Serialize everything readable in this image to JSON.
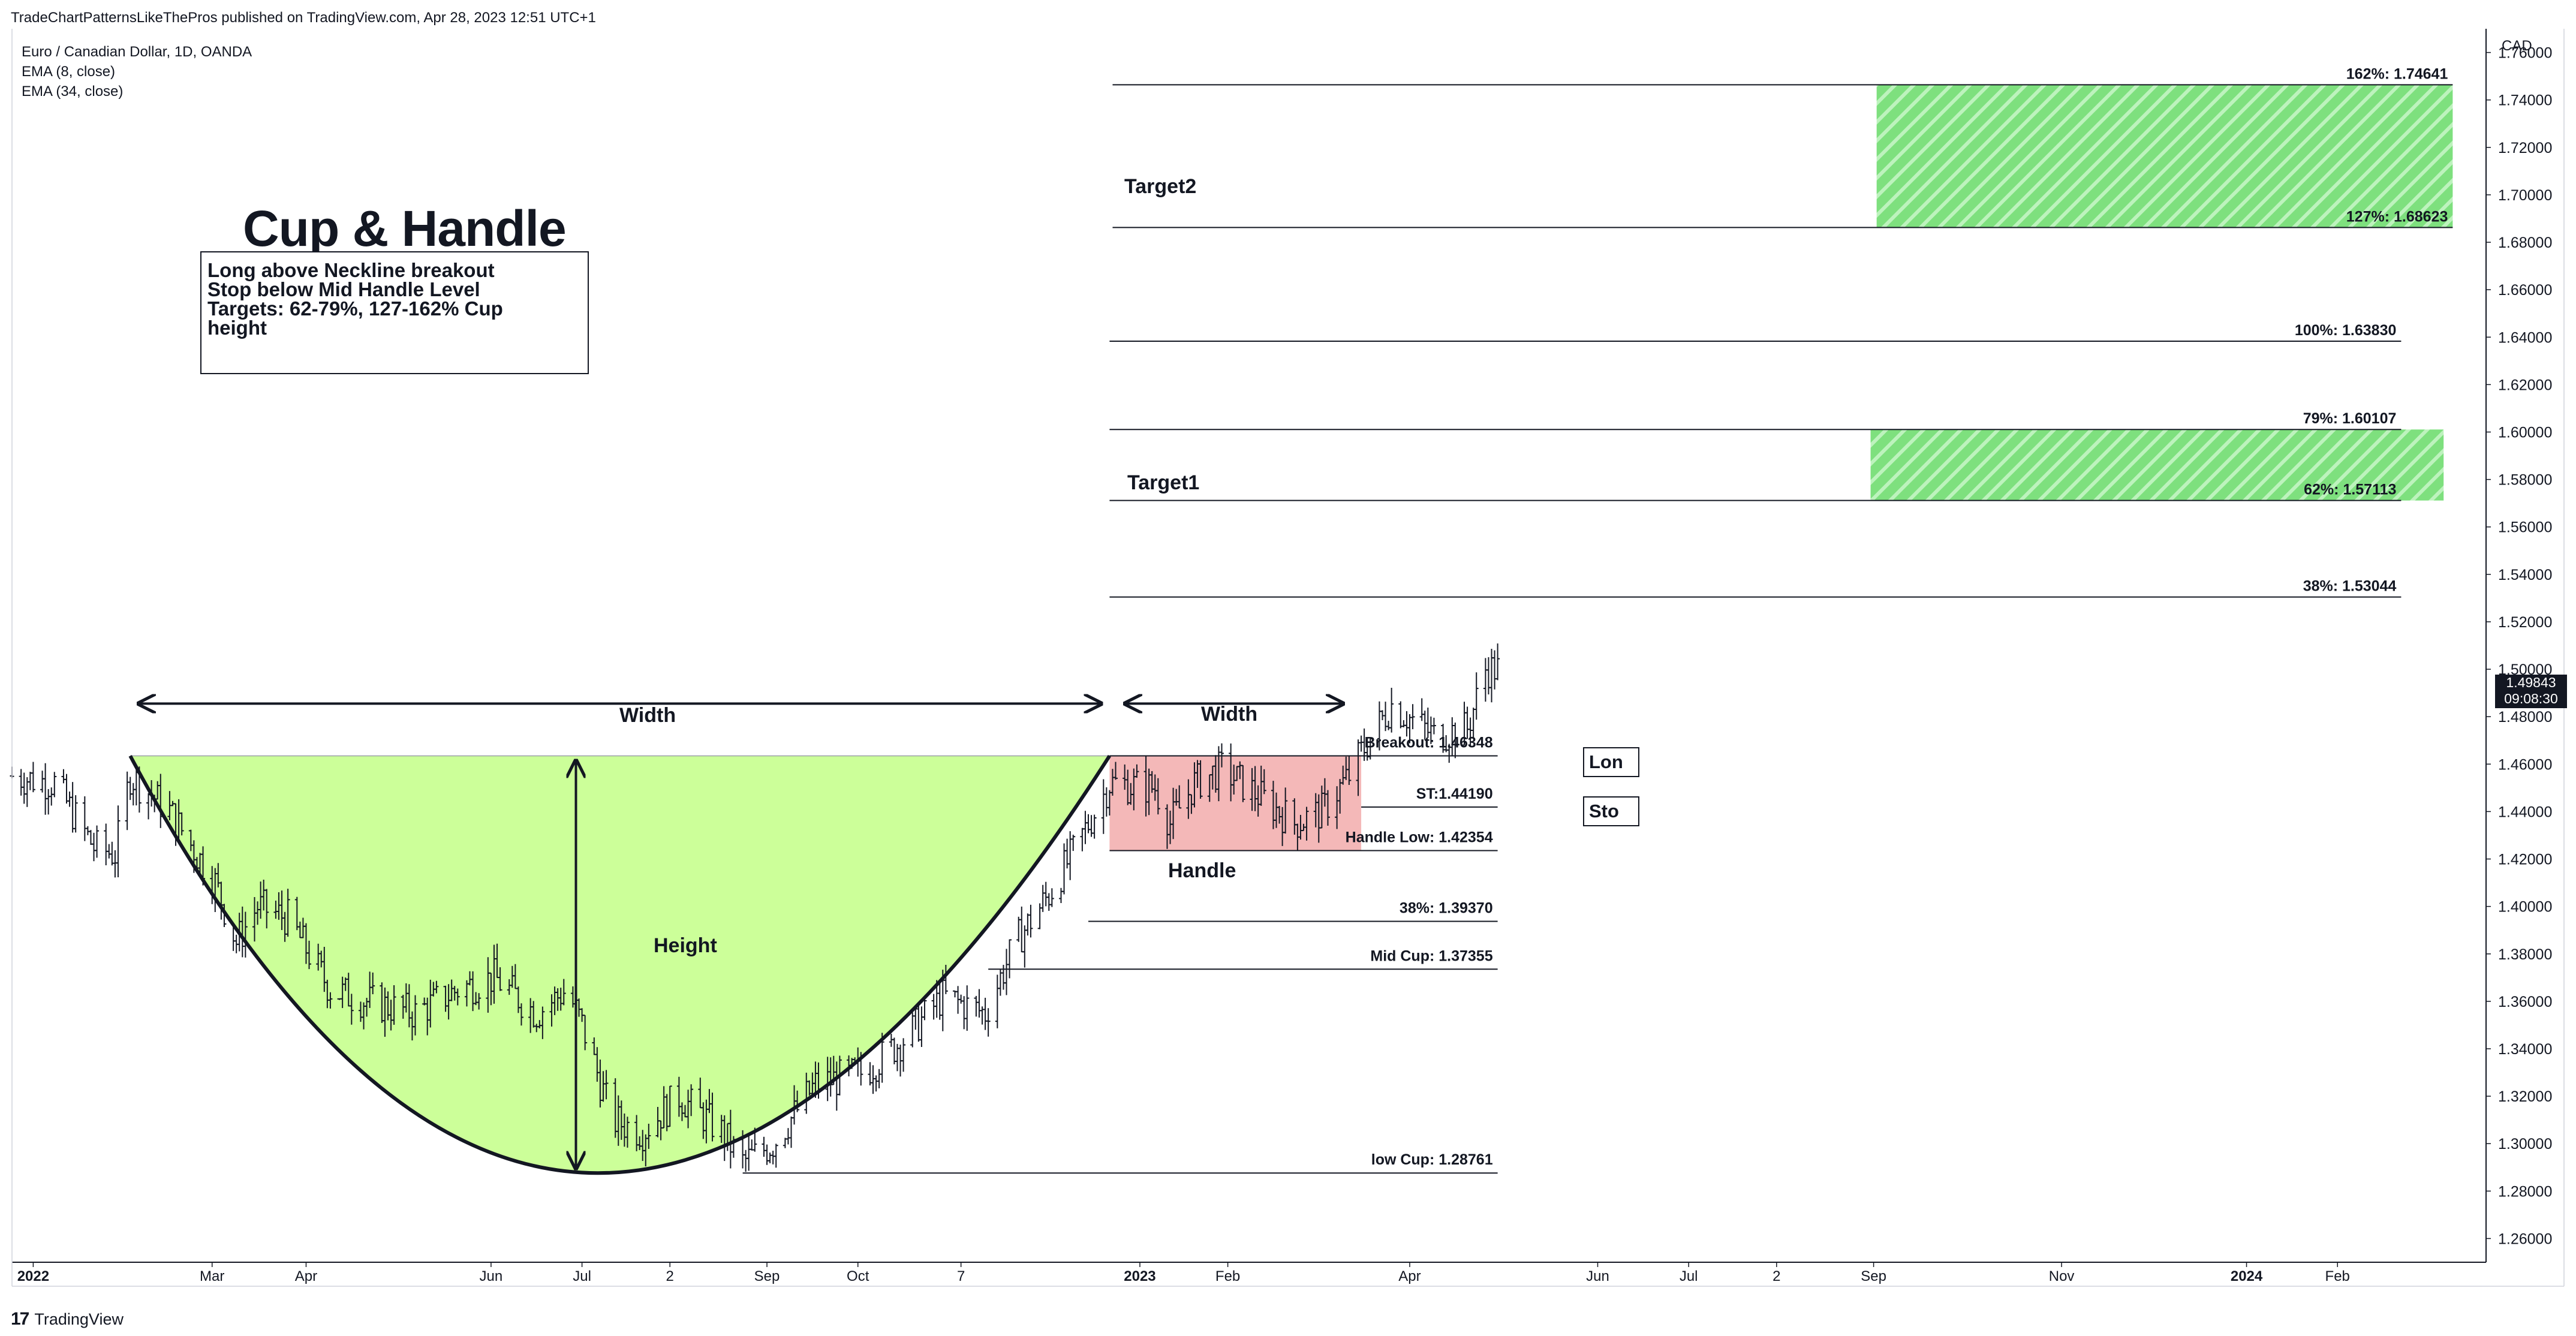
{
  "header": {
    "published": "TradeChartPatternsLikeThePros published on TradingView.com, Apr 28, 2023 12:51 UTC+1",
    "instrument": "Euro / Canadian Dollar, 1D, OANDA",
    "indicator_1": "EMA (8, close)",
    "indicator_2": "EMA (34, close)"
  },
  "footer": {
    "brand_mark": "17",
    "brand": "TradingView"
  },
  "annotations": {
    "title": "Cup & Handle",
    "note_lines": [
      "Long above Neckline breakout",
      "Stop below Mid Handle Level",
      "Targets: 62-79%, 127-162% Cup",
      "height"
    ],
    "width_label_1": "Width",
    "width_label_2": "Width",
    "height_label": "Height",
    "handle_label": "Handle",
    "target1_label": "Target1",
    "target2_label": "Target2",
    "long_box": "Lon",
    "stop_box": "Sto"
  },
  "price_box": {
    "value": "1.49843",
    "countdown": "09:08:30"
  },
  "colors": {
    "cup_fill": "#ccff99",
    "handle_fill": "#f4b8b8",
    "target_hatch": "#7ee07e",
    "candles": "#131722"
  },
  "chart_data": {
    "type": "bar",
    "currency": "CAD",
    "ylim": [
      1.25,
      1.77
    ],
    "y_ticks": [
      "1.76000",
      "1.74000",
      "1.72000",
      "1.70000",
      "1.68000",
      "1.66000",
      "1.64000",
      "1.62000",
      "1.60000",
      "1.58000",
      "1.56000",
      "1.54000",
      "1.52000",
      "1.50000",
      "1.48000",
      "1.46000",
      "1.44000",
      "1.42000",
      "1.40000",
      "1.38000",
      "1.36000",
      "1.34000",
      "1.32000",
      "1.30000",
      "1.28000",
      "1.26000"
    ],
    "x_ticks": [
      "2022",
      "Mar",
      "Apr",
      "Jun",
      "Jul",
      "2",
      "Sep",
      "Oct",
      "7",
      "2023",
      "Feb",
      "Apr",
      "Jun",
      "Jul",
      "2",
      "Sep",
      "Nov",
      "2024",
      "Feb"
    ],
    "x_ticks_bold": [
      "2022",
      "2023",
      "2024"
    ],
    "x_range": [
      "2021-12-24",
      "2024-03-19"
    ],
    "x_tick_dates": [
      "2021-12-31",
      "2022-02-28",
      "2022-03-31",
      "2022-05-31",
      "2022-06-30",
      "2022-07-29",
      "2022-08-30",
      "2022-09-29",
      "2022-11-02",
      "2022-12-31",
      "2023-01-29",
      "2023-03-30",
      "2023-05-31",
      "2023-06-30",
      "2023-07-29",
      "2023-08-30",
      "2023-10-31",
      "2023-12-31",
      "2024-01-30"
    ],
    "last_price": "1.49843",
    "cup": {
      "rim_price": 1.46348,
      "low_price": 1.28761,
      "left_rim_date": "2022-02-01",
      "low_date": "2022-06-28",
      "right_rim_date": "2022-12-21"
    },
    "handle_zone": {
      "from": "2022-12-21",
      "to": "2023-03-14",
      "top": 1.46348,
      "bottom": 1.42354
    },
    "target_zones": [
      {
        "name": "Target1",
        "from": "2023-08-29",
        "to": "2024-03-05",
        "top": 1.60107,
        "bottom": 1.57113
      },
      {
        "name": "Target2",
        "from": "2023-08-31",
        "to": "2024-03-08",
        "top": 1.74641,
        "bottom": 1.68623
      }
    ],
    "levels": [
      {
        "label": "162%: 1.74641",
        "price": 1.74641,
        "from": "2022-12-22",
        "to": "2024-03-08"
      },
      {
        "label": "127%: 1.68623",
        "price": 1.68623,
        "from": "2022-12-22",
        "to": "2024-03-08"
      },
      {
        "label": "100%: 1.63830",
        "price": 1.6383,
        "from": "2022-12-21",
        "to": "2024-02-20"
      },
      {
        "label": "79%: 1.60107",
        "price": 1.60107,
        "from": "2022-12-21",
        "to": "2024-02-20"
      },
      {
        "label": "62%: 1.57113",
        "price": 1.57113,
        "from": "2022-12-21",
        "to": "2024-02-20"
      },
      {
        "label": "38%: 1.53044",
        "price": 1.53044,
        "from": "2022-12-21",
        "to": "2024-02-20"
      },
      {
        "label": "Breakout: 1.46348",
        "price": 1.46348,
        "from": "2022-12-21",
        "to": "2023-04-28"
      },
      {
        "label": "ST:1.44190",
        "price": 1.4419,
        "from": "2023-03-14",
        "to": "2023-04-28"
      },
      {
        "label": "Handle Low: 1.42354",
        "price": 1.42354,
        "from": "2022-12-21",
        "to": "2023-04-28"
      },
      {
        "label": "38%: 1.39370",
        "price": 1.3937,
        "from": "2022-12-14",
        "to": "2023-04-28"
      },
      {
        "label": "Mid Cup: 1.37355",
        "price": 1.37355,
        "from": "2022-11-11",
        "to": "2023-04-28"
      },
      {
        "label": "low Cup: 1.28761",
        "price": 1.28761,
        "from": "2022-08-22",
        "to": "2023-04-28"
      }
    ],
    "price_path": [
      [
        "2021-12-24",
        1.455
      ],
      [
        "2022-01-07",
        1.452
      ],
      [
        "2022-01-20",
        1.425
      ],
      [
        "2022-01-27",
        1.422
      ],
      [
        "2022-02-01",
        1.455
      ],
      [
        "2022-02-14",
        1.44
      ],
      [
        "2022-03-01",
        1.41
      ],
      [
        "2022-03-08",
        1.385
      ],
      [
        "2022-03-15",
        1.4
      ],
      [
        "2022-03-25",
        1.395
      ],
      [
        "2022-04-08",
        1.365
      ],
      [
        "2022-04-20",
        1.36
      ],
      [
        "2022-05-06",
        1.355
      ],
      [
        "2022-05-20",
        1.365
      ],
      [
        "2022-06-01",
        1.37
      ],
      [
        "2022-06-15",
        1.355
      ],
      [
        "2022-06-25",
        1.365
      ],
      [
        "2022-06-30",
        1.35
      ],
      [
        "2022-07-10",
        1.31
      ],
      [
        "2022-07-20",
        1.305
      ],
      [
        "2022-08-01",
        1.32
      ],
      [
        "2022-08-15",
        1.305
      ],
      [
        "2022-08-22",
        1.292
      ],
      [
        "2022-09-01",
        1.3
      ],
      [
        "2022-09-15",
        1.325
      ],
      [
        "2022-10-01",
        1.33
      ],
      [
        "2022-10-15",
        1.345
      ],
      [
        "2022-10-27",
        1.362
      ],
      [
        "2022-11-10",
        1.355
      ],
      [
        "2022-11-20",
        1.385
      ],
      [
        "2022-12-01",
        1.405
      ],
      [
        "2022-12-10",
        1.425
      ],
      [
        "2022-12-21",
        1.452
      ],
      [
        "2023-01-05",
        1.45
      ],
      [
        "2023-01-10",
        1.435
      ],
      [
        "2023-01-18",
        1.452
      ],
      [
        "2023-01-27",
        1.458
      ],
      [
        "2023-02-10",
        1.445
      ],
      [
        "2023-02-20",
        1.435
      ],
      [
        "2023-03-01",
        1.44
      ],
      [
        "2023-03-10",
        1.455
      ],
      [
        "2023-03-14",
        1.465
      ],
      [
        "2023-03-24",
        1.485
      ],
      [
        "2023-04-07",
        1.472
      ],
      [
        "2023-04-18",
        1.475
      ],
      [
        "2023-04-24",
        1.5
      ],
      [
        "2023-04-28",
        1.5
      ]
    ]
  }
}
